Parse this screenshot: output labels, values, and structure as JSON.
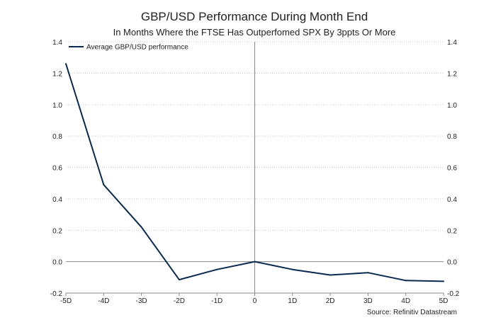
{
  "chart_data": {
    "type": "line",
    "title": "GBP/USD Performance During Month End",
    "subtitle": "In Months Where the FTSE Has Outperfomed SPX By 3ppts Or More",
    "source": "Source: Refinitiv Datastream",
    "categories": [
      "-5D",
      "-4D",
      "-3D",
      "-2D",
      "-1D",
      "0",
      "1D",
      "2D",
      "3D",
      "4D",
      "5D"
    ],
    "series": [
      {
        "name": "Average GBP/USD performance",
        "color": "#0b2a4f",
        "values": [
          1.26,
          0.49,
          0.22,
          -0.115,
          -0.05,
          0.0,
          -0.05,
          -0.085,
          -0.07,
          -0.12,
          -0.125
        ]
      }
    ],
    "ylim": [
      -0.2,
      1.4
    ],
    "yticks": [
      -0.2,
      0.0,
      0.2,
      0.4,
      0.6,
      0.8,
      1.0,
      1.2,
      1.4
    ],
    "ytick_labels": [
      "-0.2",
      "0.0",
      "0.2",
      "0.4",
      "0.6",
      "0.8",
      "1.0",
      "1.2",
      "1.4"
    ],
    "grid": true,
    "legend": "top-left",
    "vline_at": "0",
    "zero_line": true
  }
}
